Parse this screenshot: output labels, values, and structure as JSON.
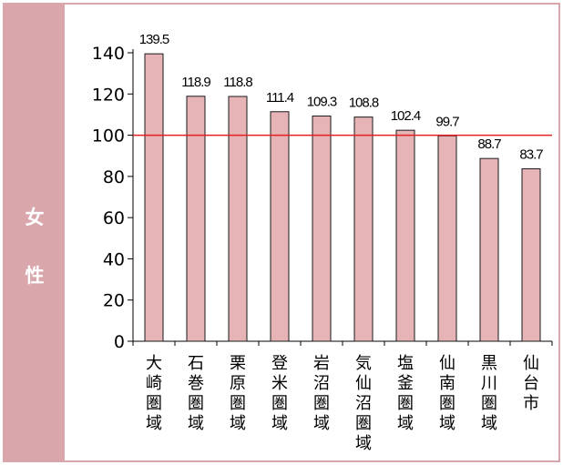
{
  "side_label": {
    "chars": [
      "女",
      "性"
    ]
  },
  "colors": {
    "bar": "#e6b4b6",
    "bar_stroke": "#1a1a1a",
    "reference_line": "#e52020",
    "band": "#d9a7ab"
  },
  "chart_data": {
    "type": "bar",
    "categories": [
      "大崎圏域",
      "石巻圏域",
      "栗原圏域",
      "登米圏域",
      "岩沼圏域",
      "気仙沼圏域",
      "塩釜圏域",
      "仙南圏域",
      "黒川圏域",
      "仙台市"
    ],
    "values": [
      139.5,
      118.9,
      118.8,
      111.4,
      109.3,
      108.8,
      102.4,
      99.7,
      88.7,
      83.7
    ],
    "data_labels": [
      "139.5",
      "118.9",
      "118.8",
      "111.4",
      "109.3",
      "108.8",
      "102.4",
      "99.7",
      "88.7",
      "83.7"
    ],
    "yticks": [
      0,
      20,
      40,
      60,
      80,
      100,
      120,
      140
    ],
    "ylim": [
      0,
      140
    ],
    "reference_line": 100,
    "grid": false,
    "title": "",
    "xlabel": "",
    "ylabel": ""
  }
}
